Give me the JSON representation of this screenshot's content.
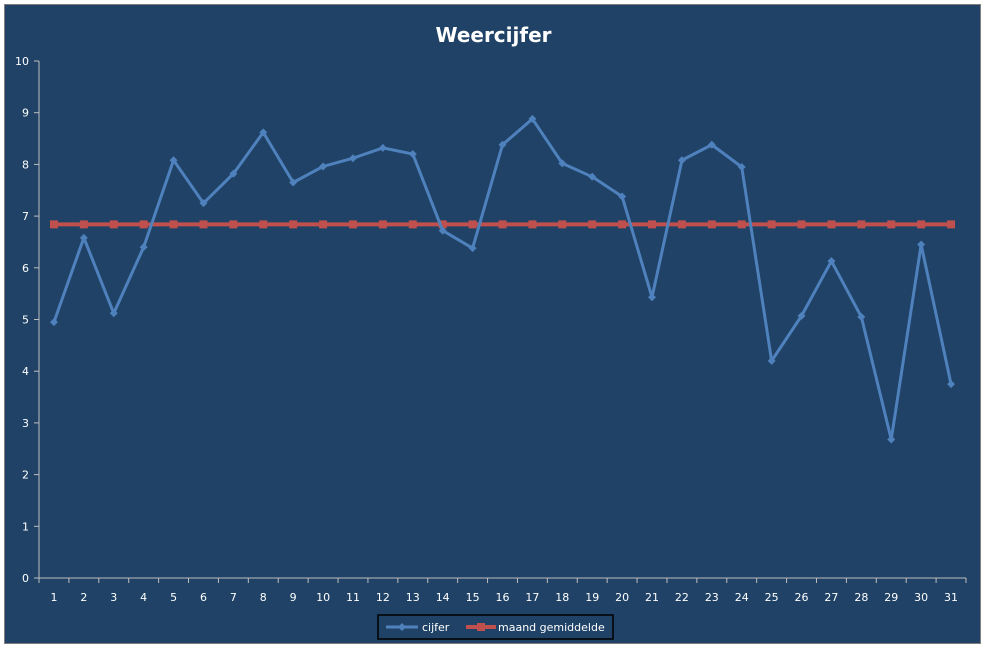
{
  "chart_data": {
    "type": "line",
    "title": "Weercijfer",
    "xlabel": "",
    "ylabel": "",
    "categories": [
      "1",
      "2",
      "3",
      "4",
      "5",
      "6",
      "7",
      "8",
      "9",
      "10",
      "11",
      "12",
      "13",
      "14",
      "15",
      "16",
      "17",
      "18",
      "19",
      "20",
      "21",
      "22",
      "23",
      "24",
      "25",
      "26",
      "27",
      "28",
      "29",
      "30",
      "31"
    ],
    "ylim": [
      0,
      10
    ],
    "yticks": [
      "0",
      "1",
      "2",
      "3",
      "4",
      "5",
      "6",
      "7",
      "8",
      "9",
      "10"
    ],
    "grid": false,
    "legend_position": "bottom",
    "series": [
      {
        "name": "cijfer",
        "color": "#4f81bd",
        "marker": "diamond",
        "values": [
          4.95,
          6.58,
          5.12,
          6.4,
          8.08,
          7.25,
          7.82,
          8.62,
          7.65,
          7.96,
          8.12,
          8.32,
          8.2,
          6.72,
          6.38,
          8.38,
          8.88,
          8.02,
          7.76,
          7.38,
          5.43,
          8.08,
          8.38,
          7.95,
          4.2,
          5.07,
          6.13,
          5.05,
          2.68,
          6.45,
          3.75
        ]
      },
      {
        "name": "maand gemiddelde",
        "color": "#c0504d",
        "marker": "square",
        "values": [
          6.84,
          6.84,
          6.84,
          6.84,
          6.84,
          6.84,
          6.84,
          6.84,
          6.84,
          6.84,
          6.84,
          6.84,
          6.84,
          6.84,
          6.84,
          6.84,
          6.84,
          6.84,
          6.84,
          6.84,
          6.84,
          6.84,
          6.84,
          6.84,
          6.84,
          6.84,
          6.84,
          6.84,
          6.84,
          6.84,
          6.84
        ]
      }
    ]
  }
}
